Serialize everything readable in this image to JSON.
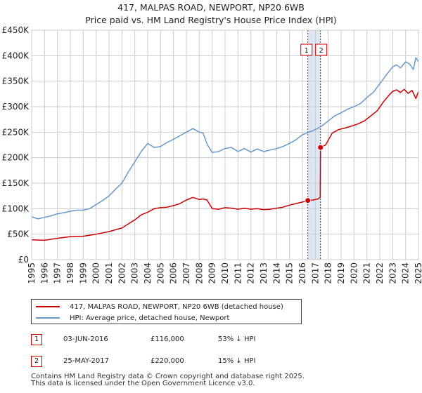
{
  "title_line1": "417, MALPAS ROAD, NEWPORT, NP20 6WB",
  "title_line2": "Price paid vs. HM Land Registry's House Price Index (HPI)",
  "colors": {
    "price": "#cc0000",
    "hpi": "#6699cc",
    "shade": "#dde6f5",
    "grid": "#cccccc"
  },
  "chart_data": {
    "type": "line",
    "title": "417, MALPAS ROAD, NEWPORT, NP20 6WB — Price paid vs. HM Land Registry's House Price Index (HPI)",
    "xlabel": "",
    "ylabel": "",
    "xlim": [
      1995,
      2025
    ],
    "ylim": [
      0,
      450000
    ],
    "x_ticks": [
      "1995",
      "1996",
      "1997",
      "1998",
      "1999",
      "2000",
      "2001",
      "2002",
      "2003",
      "2004",
      "2005",
      "2006",
      "2007",
      "2008",
      "2009",
      "2010",
      "2011",
      "2012",
      "2013",
      "2014",
      "2015",
      "2016",
      "2017",
      "2018",
      "2019",
      "2020",
      "2021",
      "2022",
      "2023",
      "2024",
      "2025"
    ],
    "y_ticks": [
      {
        "value": 0,
        "label": "£0"
      },
      {
        "value": 50000,
        "label": "£50K"
      },
      {
        "value": 100000,
        "label": "£100K"
      },
      {
        "value": 150000,
        "label": "£150K"
      },
      {
        "value": 200000,
        "label": "£200K"
      },
      {
        "value": 250000,
        "label": "£250K"
      },
      {
        "value": 300000,
        "label": "£300K"
      },
      {
        "value": 350000,
        "label": "£350K"
      },
      {
        "value": 400000,
        "label": "£400K"
      },
      {
        "value": 450000,
        "label": "£450K"
      }
    ],
    "grid": true,
    "shaded_range": [
      2016.42,
      2017.4
    ],
    "series": [
      {
        "name": "417, MALPAS ROAD, NEWPORT, NP20 6WB (detached house)",
        "color": "#cc0000",
        "x": [
          1995.0,
          1996.0,
          1997.0,
          1998.0,
          1999.0,
          2000.0,
          2001.0,
          2002.0,
          2003.0,
          2003.5,
          2004.0,
          2004.5,
          2005.0,
          2005.5,
          2006.0,
          2006.5,
          2007.0,
          2007.5,
          2008.0,
          2008.3,
          2008.6,
          2009.0,
          2009.5,
          2010.0,
          2010.5,
          2011.0,
          2011.5,
          2012.0,
          2012.5,
          2013.0,
          2013.5,
          2014.0,
          2014.5,
          2015.0,
          2015.5,
          2016.0,
          2016.42,
          2016.8,
          2017.2,
          2017.38,
          2017.4,
          2017.8,
          2018.3,
          2018.8,
          2019.3,
          2019.8,
          2020.3,
          2020.8,
          2021.3,
          2021.8,
          2022.3,
          2022.7,
          2023.0,
          2023.3,
          2023.6,
          2023.9,
          2024.2,
          2024.5,
          2024.8,
          2025.0
        ],
        "y": [
          39000,
          38000,
          42000,
          45000,
          46000,
          50000,
          55000,
          62000,
          78000,
          88000,
          93000,
          100000,
          102000,
          103000,
          106000,
          110000,
          117000,
          122000,
          118000,
          119000,
          117000,
          100000,
          99000,
          102000,
          101000,
          99000,
          101000,
          99000,
          100000,
          98000,
          99000,
          101000,
          103000,
          107000,
          110000,
          113000,
          116000,
          117000,
          119000,
          122000,
          220000,
          225000,
          248000,
          255000,
          258000,
          262000,
          266000,
          272000,
          282000,
          292000,
          310000,
          322000,
          330000,
          333000,
          328000,
          334000,
          326000,
          332000,
          316000,
          330000
        ]
      },
      {
        "name": "HPI: Average price, detached house, Newport",
        "color": "#6699cc",
        "x": [
          1995.0,
          1995.5,
          1996.0,
          1996.5,
          1997.0,
          1997.5,
          1998.0,
          1998.5,
          1999.0,
          1999.5,
          2000.0,
          2000.5,
          2001.0,
          2001.5,
          2002.0,
          2002.5,
          2003.0,
          2003.5,
          2004.0,
          2004.5,
          2005.0,
          2005.5,
          2006.0,
          2006.5,
          2007.0,
          2007.5,
          2008.0,
          2008.3,
          2008.6,
          2009.0,
          2009.5,
          2010.0,
          2010.5,
          2011.0,
          2011.5,
          2012.0,
          2012.5,
          2013.0,
          2013.5,
          2014.0,
          2014.5,
          2015.0,
          2015.5,
          2016.0,
          2016.5,
          2017.0,
          2017.5,
          2018.0,
          2018.5,
          2019.0,
          2019.5,
          2020.0,
          2020.5,
          2021.0,
          2021.5,
          2022.0,
          2022.5,
          2023.0,
          2023.3,
          2023.6,
          2024.0,
          2024.3,
          2024.6,
          2024.8,
          2025.0
        ],
        "y": [
          84000,
          80000,
          83000,
          86000,
          90000,
          92000,
          95000,
          97000,
          97000,
          100000,
          108000,
          116000,
          125000,
          138000,
          150000,
          172000,
          192000,
          212000,
          228000,
          220000,
          222000,
          230000,
          236000,
          243000,
          250000,
          257000,
          250000,
          248000,
          227000,
          210000,
          212000,
          218000,
          220000,
          212000,
          218000,
          211000,
          217000,
          212000,
          215000,
          218000,
          222000,
          228000,
          235000,
          245000,
          250000,
          255000,
          262000,
          272000,
          282000,
          288000,
          295000,
          300000,
          306000,
          318000,
          328000,
          345000,
          362000,
          378000,
          382000,
          376000,
          388000,
          384000,
          373000,
          396000,
          388000
        ]
      }
    ],
    "markers": [
      {
        "label": "1",
        "date": "03-JUN-2016",
        "x": 2016.42,
        "y": 116000,
        "price": "£116,000",
        "hpi": "53% ↓ HPI"
      },
      {
        "label": "2",
        "date": "25-MAY-2017",
        "x": 2017.4,
        "y": 220000,
        "price": "£220,000",
        "hpi": "15% ↓ HPI"
      }
    ]
  },
  "legend": {
    "price_label": "417, MALPAS ROAD, NEWPORT, NP20 6WB (detached house)",
    "hpi_label": "HPI: Average price, detached house, Newport"
  },
  "transactions": [
    {
      "badge": "1",
      "date": "03-JUN-2016",
      "price": "£116,000",
      "hpi": "53% ↓ HPI"
    },
    {
      "badge": "2",
      "date": "25-MAY-2017",
      "price": "£220,000",
      "hpi": "15% ↓ HPI"
    }
  ],
  "footer": {
    "line1": "Contains HM Land Registry data © Crown copyright and database right 2025.",
    "line2": "This data is licensed under the Open Government Licence v3.0."
  }
}
